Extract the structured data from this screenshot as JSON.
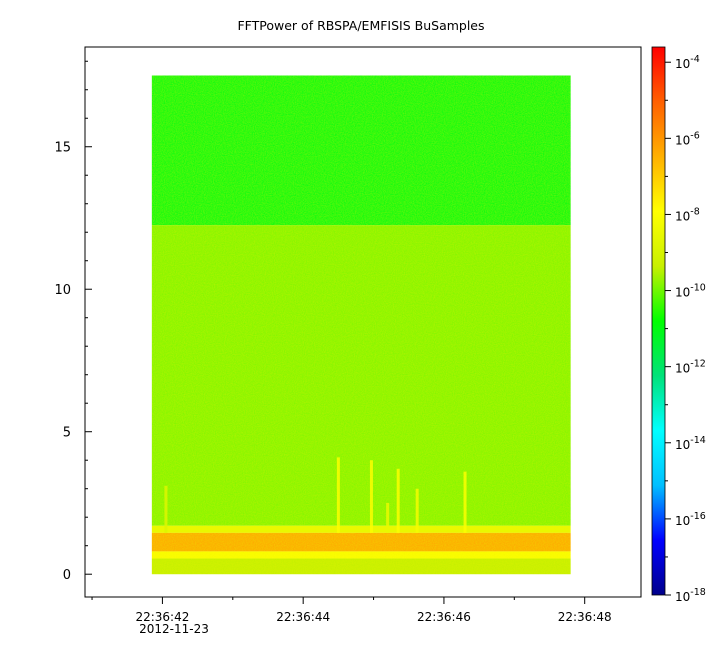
{
  "chart_data": {
    "type": "heatmap",
    "title": "FFTPower of RBSPA/EMFISIS  BuSamples",
    "xlabel": "",
    "ylabel": "",
    "x_ticks": [
      {
        "value": 1,
        "label": "22:36:42"
      },
      {
        "value": 3,
        "label": "22:36:44"
      },
      {
        "value": 5,
        "label": "22:36:46"
      },
      {
        "value": 7,
        "label": "22:36:48"
      }
    ],
    "x_minor_ticks": [
      0,
      2,
      4,
      6
    ],
    "x_date_label": "2012-11-23",
    "xlim": [
      -0.1,
      7.8
    ],
    "data_xrange": [
      0.85,
      6.8
    ],
    "y_ticks": [
      0,
      5,
      10,
      15
    ],
    "y_minor_step": 1,
    "ylim": [
      -0.8,
      18.5
    ],
    "data_yrange": [
      0.0,
      17.5
    ],
    "colorbar": {
      "scale": "log",
      "range_exp": [
        -18,
        -3.6
      ],
      "tick_exps": [
        -18,
        -16,
        -14,
        -12,
        -10,
        -8,
        -6,
        -4
      ],
      "tick_labels": [
        "10",
        "10",
        "10",
        "10",
        "10",
        "10",
        "10",
        "10"
      ],
      "tick_superscripts": [
        "-18",
        "-16",
        "-14",
        "-12",
        "-10",
        "-8",
        "-6",
        "-4"
      ],
      "colors": [
        "#00008b",
        "#0000ff",
        "#00bfff",
        "#00ffff",
        "#00e27a",
        "#00ff00",
        "#c8f000",
        "#ffff00",
        "#ffb000",
        "#ff6000",
        "#ff0000"
      ]
    },
    "spectrogram_bands": [
      {
        "y_from": 12.25,
        "y_to": 17.5,
        "power_exp": -11.0
      },
      {
        "y_from": 1.7,
        "y_to": 12.25,
        "power_exp": -9.9
      },
      {
        "y_from": 1.45,
        "y_to": 1.7,
        "power_exp": -8.5
      },
      {
        "y_from": 0.8,
        "y_to": 1.45,
        "power_exp": -6.3
      },
      {
        "y_from": 0.55,
        "y_to": 0.8,
        "power_exp": -8.0
      },
      {
        "y_from": 0.0,
        "y_to": 0.55,
        "power_exp": -9.4
      }
    ],
    "spikes": [
      {
        "x": 1.05,
        "y_top": 3.1,
        "power_exp": -8.8
      },
      {
        "x": 3.5,
        "y_top": 4.1,
        "power_exp": -8.0
      },
      {
        "x": 3.97,
        "y_top": 4.0,
        "power_exp": -8.0
      },
      {
        "x": 4.2,
        "y_top": 2.5,
        "power_exp": -8.5
      },
      {
        "x": 4.35,
        "y_top": 3.7,
        "power_exp": -8.0
      },
      {
        "x": 4.62,
        "y_top": 3.0,
        "power_exp": -8.2
      },
      {
        "x": 5.3,
        "y_top": 3.6,
        "power_exp": -8.0
      }
    ]
  }
}
